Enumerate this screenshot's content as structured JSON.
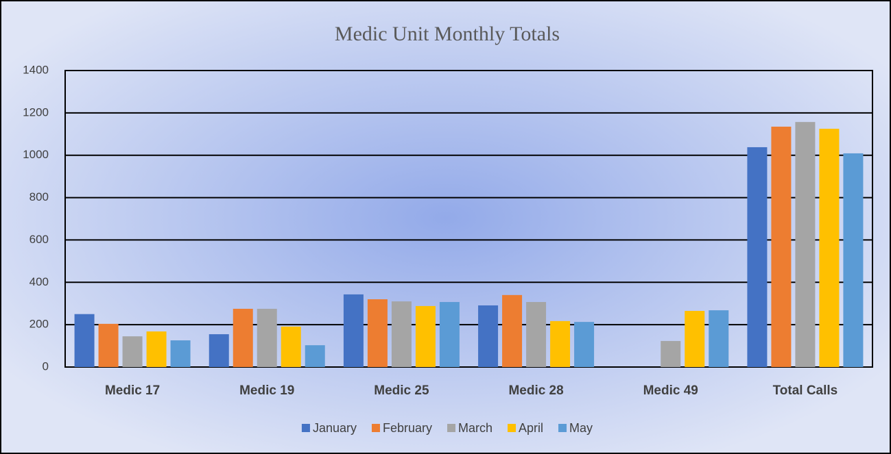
{
  "chart_data": {
    "type": "bar",
    "title": "Medic Unit Monthly Totals",
    "categories": [
      "Medic 17",
      "Medic 19",
      "Medic 25",
      "Medic 28",
      "Medic 49",
      "Total Calls"
    ],
    "series": [
      {
        "name": "January",
        "color": "#4472c4",
        "values": [
          250,
          155,
          343,
          291,
          0,
          1038
        ]
      },
      {
        "name": "February",
        "color": "#ed7d31",
        "values": [
          204,
          275,
          320,
          340,
          0,
          1135
        ]
      },
      {
        "name": "March",
        "color": "#a5a5a5",
        "values": [
          145,
          275,
          310,
          307,
          123,
          1157
        ]
      },
      {
        "name": "April",
        "color": "#ffc000",
        "values": [
          168,
          191,
          288,
          217,
          265,
          1125
        ]
      },
      {
        "name": "May",
        "color": "#5b9bd5",
        "values": [
          126,
          103,
          307,
          213,
          268,
          1009
        ]
      }
    ],
    "ylim": [
      0,
      1400
    ],
    "yticks": [
      0,
      200,
      400,
      600,
      800,
      1000,
      1200,
      1400
    ],
    "grid": true,
    "legend": "bottom"
  }
}
